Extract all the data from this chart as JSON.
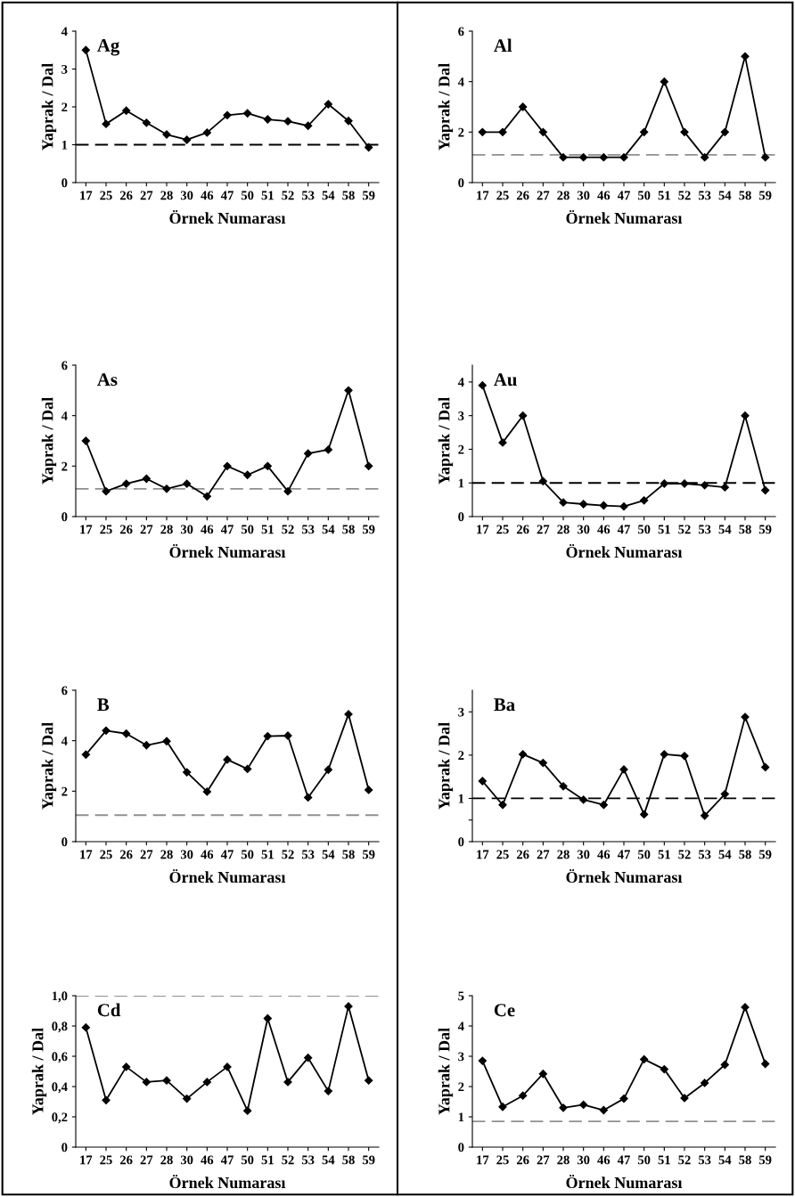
{
  "chart_data": [
    {
      "type": "line",
      "title": "Ag",
      "xlabel": "Örnek Numarası",
      "ylabel": "Yaprak / Dal",
      "categories": [
        "17",
        "25",
        "26",
        "27",
        "28",
        "30",
        "46",
        "47",
        "50",
        "51",
        "52",
        "53",
        "54",
        "58",
        "59"
      ],
      "series": [
        {
          "color": "#000000",
          "values": [
            3.5,
            1.55,
            1.9,
            1.58,
            1.27,
            1.13,
            1.32,
            1.78,
            1.83,
            1.67,
            1.62,
            1.5,
            2.07,
            1.63,
            0.93
          ]
        }
      ],
      "ylim": [
        0,
        4
      ],
      "yticks": [
        0,
        1,
        2,
        3,
        4
      ],
      "marker": "diamond",
      "line_style": "solid",
      "grid": false,
      "legend": false,
      "ref_lines": [
        {
          "axis": "y",
          "value": 1,
          "color": "#000000",
          "line_style": "dashed"
        }
      ]
    },
    {
      "type": "line",
      "title": "Al",
      "xlabel": "Örnek Numarası",
      "ylabel": "Yaprak / Dal",
      "categories": [
        "17",
        "25",
        "26",
        "27",
        "28",
        "30",
        "46",
        "47",
        "50",
        "51",
        "52",
        "53",
        "54",
        "58",
        "59"
      ],
      "series": [
        {
          "color": "#000000",
          "values": [
            2,
            2,
            3,
            2,
            1,
            1,
            1,
            1,
            2,
            4,
            2,
            1,
            2,
            5,
            1
          ]
        }
      ],
      "ylim": [
        0,
        6
      ],
      "yticks": [
        0,
        2,
        4,
        6
      ],
      "marker": "diamond",
      "line_style": "solid",
      "grid": false,
      "legend": false,
      "ref_lines": [
        {
          "axis": "y",
          "value": 1.1,
          "color": "#909090",
          "line_style": "dashed"
        }
      ]
    },
    {
      "type": "line",
      "title": "As",
      "xlabel": "Örnek Numarası",
      "ylabel": "Yaprak / Dal",
      "categories": [
        "17",
        "25",
        "26",
        "27",
        "28",
        "30",
        "46",
        "47",
        "50",
        "51",
        "52",
        "53",
        "54",
        "58",
        "59"
      ],
      "series": [
        {
          "color": "#000000",
          "values": [
            3,
            1,
            1.3,
            1.5,
            1.1,
            1.3,
            0.8,
            2,
            1.65,
            2,
            1,
            2.5,
            2.65,
            5,
            2
          ]
        }
      ],
      "ylim": [
        0,
        6
      ],
      "yticks": [
        0,
        2,
        4,
        6
      ],
      "marker": "diamond",
      "line_style": "solid",
      "grid": false,
      "legend": false,
      "ref_lines": [
        {
          "axis": "y",
          "value": 1.1,
          "color": "#909090",
          "line_style": "dashed"
        }
      ]
    },
    {
      "type": "line",
      "title": "Au",
      "xlabel": "Örnek Numarası",
      "ylabel": "Yaprak / Dal",
      "categories": [
        "17",
        "25",
        "26",
        "27",
        "28",
        "30",
        "46",
        "47",
        "50",
        "51",
        "52",
        "53",
        "54",
        "58",
        "59"
      ],
      "series": [
        {
          "color": "#000000",
          "values": [
            3.9,
            2.2,
            3.0,
            1.05,
            0.42,
            0.37,
            0.33,
            0.3,
            0.48,
            0.98,
            0.98,
            0.93,
            0.87,
            3.0,
            0.78
          ]
        }
      ],
      "ylim": [
        0,
        4.5
      ],
      "yticks": [
        0,
        1,
        2,
        3,
        4
      ],
      "marker": "diamond",
      "line_style": "solid",
      "grid": false,
      "legend": false,
      "ref_lines": [
        {
          "axis": "y",
          "value": 1,
          "color": "#000000",
          "line_style": "dashed"
        }
      ]
    },
    {
      "type": "line",
      "title": "B",
      "xlabel": "Örnek Numarası",
      "ylabel": "Yaprak / Dal",
      "categories": [
        "17",
        "25",
        "26",
        "27",
        "28",
        "30",
        "46",
        "47",
        "50",
        "51",
        "52",
        "53",
        "54",
        "58",
        "59"
      ],
      "series": [
        {
          "color": "#000000",
          "values": [
            3.45,
            4.4,
            4.28,
            3.82,
            3.98,
            2.75,
            1.98,
            3.25,
            2.88,
            4.18,
            4.2,
            1.75,
            2.85,
            5.05,
            2.05
          ]
        }
      ],
      "ylim": [
        0,
        6
      ],
      "yticks": [
        0,
        2,
        4,
        6
      ],
      "marker": "diamond",
      "line_style": "solid",
      "grid": false,
      "legend": false,
      "ref_lines": [
        {
          "axis": "y",
          "value": 1.05,
          "color": "#909090",
          "line_style": "dashed"
        }
      ]
    },
    {
      "type": "line",
      "title": "Ba",
      "xlabel": "Örnek Numarası",
      "ylabel": "Yaprak / Dal",
      "categories": [
        "17",
        "25",
        "26",
        "27",
        "28",
        "30",
        "46",
        "47",
        "50",
        "51",
        "52",
        "53",
        "54",
        "58",
        "59"
      ],
      "series": [
        {
          "color": "#000000",
          "values": [
            1.4,
            0.85,
            2.02,
            1.82,
            1.28,
            0.97,
            0.85,
            1.67,
            0.63,
            2.02,
            1.98,
            0.6,
            1.1,
            2.88,
            1.72
          ]
        }
      ],
      "ylim": [
        0,
        3.5
      ],
      "yticks": [
        0,
        {
          "value": 0.5,
          "label": null
        },
        1,
        2,
        3
      ],
      "marker": "diamond",
      "line_style": "solid",
      "grid": false,
      "legend": false,
      "ref_lines": [
        {
          "axis": "y",
          "value": 1,
          "color": "#000000",
          "line_style": "dashed"
        }
      ]
    },
    {
      "type": "line",
      "title": "Cd",
      "xlabel": "Örnek Numarası",
      "ylabel": "Yaprak / Dal",
      "categories": [
        "17",
        "25",
        "26",
        "27",
        "28",
        "30",
        "46",
        "47",
        "50",
        "51",
        "52",
        "53",
        "54",
        "58",
        "59"
      ],
      "series": [
        {
          "color": "#000000",
          "values": [
            0.79,
            0.31,
            0.53,
            0.43,
            0.44,
            0.32,
            0.43,
            0.53,
            0.24,
            0.85,
            0.43,
            0.59,
            0.37,
            0.93,
            0.44
          ]
        }
      ],
      "ylim": [
        0,
        1.0
      ],
      "yticks": [
        0,
        {
          "value": 0.2,
          "label": "0,2"
        },
        {
          "value": 0.4,
          "label": "0,4"
        },
        {
          "value": 0.6,
          "label": "0,6"
        },
        {
          "value": 0.8,
          "label": "0,8"
        },
        {
          "value": 1.0,
          "label": "1,0"
        }
      ],
      "marker": "diamond",
      "line_style": "solid",
      "grid": false,
      "legend": false,
      "ref_lines": [
        {
          "axis": "y",
          "value": 1.0,
          "color": "#909090",
          "line_style": "dashed"
        }
      ]
    },
    {
      "type": "line",
      "title": "Ce",
      "xlabel": "Örnek Numarası",
      "ylabel": "Yaprak / Dal",
      "categories": [
        "17",
        "25",
        "26",
        "27",
        "28",
        "30",
        "46",
        "47",
        "50",
        "51",
        "52",
        "53",
        "54",
        "58",
        "59"
      ],
      "series": [
        {
          "color": "#000000",
          "values": [
            2.85,
            1.33,
            1.7,
            2.42,
            1.3,
            1.4,
            1.22,
            1.6,
            2.9,
            2.57,
            1.62,
            2.12,
            2.72,
            4.62,
            2.75
          ]
        }
      ],
      "ylim": [
        0,
        5
      ],
      "yticks": [
        0,
        1,
        2,
        3,
        4,
        5
      ],
      "marker": "diamond",
      "line_style": "solid",
      "grid": false,
      "legend": false,
      "ref_lines": [
        {
          "axis": "y",
          "value": 0.85,
          "color": "#909090",
          "line_style": "dashed"
        }
      ]
    }
  ]
}
